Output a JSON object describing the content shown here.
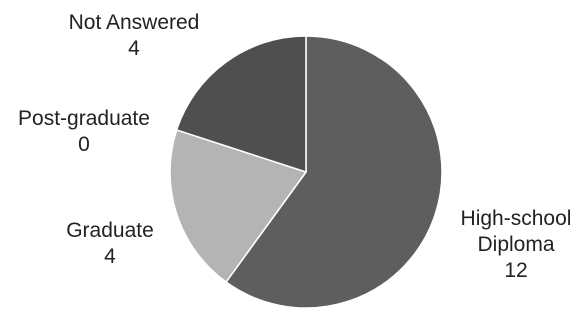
{
  "chart_data": {
    "type": "pie",
    "title": "",
    "slices": [
      {
        "label_lines": [
          "High-school",
          "Diploma"
        ],
        "value": 12,
        "value_text": "12",
        "color": "#5e5e5e"
      },
      {
        "label_lines": [
          "Graduate"
        ],
        "value": 4,
        "value_text": "4",
        "color": "#b4b4b4"
      },
      {
        "label_lines": [
          "Post-graduate"
        ],
        "value": 0,
        "value_text": "0",
        "color": "#8a8a8a"
      },
      {
        "label_lines": [
          "Not Answered"
        ],
        "value": 4,
        "value_text": "4",
        "color": "#4f4f4f"
      }
    ],
    "start_angle_deg": 0,
    "direction": "clockwise",
    "slice_border_color": "#ffffff"
  }
}
